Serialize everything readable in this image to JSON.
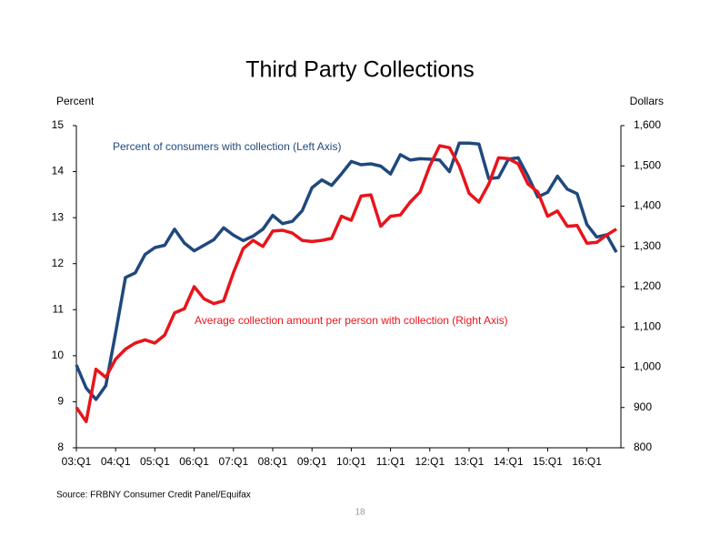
{
  "chart_data": {
    "type": "line",
    "title": "Third Party Collections",
    "y_label": "Percent",
    "y2_label": "Dollars",
    "source": "Source: FRBNY Consumer Credit Panel/Equifax",
    "page_number": "18",
    "categories": [
      "03:Q1",
      null,
      null,
      null,
      "04:Q1",
      null,
      null,
      null,
      "05:Q1",
      null,
      null,
      null,
      "06:Q1",
      null,
      null,
      null,
      "07:Q1",
      null,
      null,
      null,
      "08:Q1",
      null,
      null,
      null,
      "09:Q1",
      null,
      null,
      null,
      "10:Q1",
      null,
      null,
      null,
      "11:Q1",
      null,
      null,
      null,
      "12:Q1",
      null,
      null,
      null,
      "13:Q1",
      null,
      null,
      null,
      "14:Q1",
      null,
      null,
      null,
      "15:Q1",
      null,
      null,
      null,
      "16:Q1",
      null,
      null,
      null
    ],
    "series": [
      {
        "name": "Percent of consumers with collection (Left Axis)",
        "color": "#1f497d",
        "axis": "y",
        "values": [
          9.8,
          9.3,
          9.05,
          9.35,
          10.5,
          11.7,
          11.8,
          12.2,
          12.35,
          12.4,
          12.75,
          12.45,
          12.28,
          12.4,
          12.52,
          12.78,
          12.62,
          12.5,
          12.6,
          12.75,
          13.05,
          12.87,
          12.92,
          13.15,
          13.65,
          13.82,
          13.7,
          13.95,
          14.22,
          14.15,
          14.17,
          14.12,
          13.95,
          14.37,
          14.25,
          14.28,
          14.27,
          14.25,
          14.0,
          14.62,
          14.62,
          14.6,
          13.85,
          13.87,
          14.27,
          14.3,
          13.9,
          13.45,
          13.55,
          13.9,
          13.62,
          13.52,
          12.85,
          12.58,
          12.63,
          12.25
        ]
      },
      {
        "name": "Average collection amount per person with collection (Right Axis)",
        "color": "#e8141b",
        "axis": "y2",
        "values": [
          900,
          865,
          995,
          975,
          1020,
          1045,
          1060,
          1068,
          1060,
          1080,
          1135,
          1145,
          1200,
          1170,
          1158,
          1165,
          1235,
          1295,
          1315,
          1300,
          1338,
          1340,
          1333,
          1315,
          1312,
          1315,
          1320,
          1375,
          1365,
          1425,
          1428,
          1350,
          1375,
          1378,
          1410,
          1435,
          1500,
          1550,
          1545,
          1500,
          1432,
          1410,
          1455,
          1520,
          1518,
          1505,
          1455,
          1435,
          1375,
          1388,
          1350,
          1352,
          1308,
          1310,
          1328,
          1343
        ]
      }
    ],
    "ylim": [
      8,
      15
    ],
    "yticks": [
      8,
      9,
      10,
      11,
      12,
      13,
      14,
      15
    ],
    "y2lim": [
      800,
      1600
    ],
    "y2ticks": [
      800,
      900,
      {
        "value": 1000,
        "label": "1,000"
      },
      {
        "value": 1100,
        "label": "1,100"
      },
      {
        "value": 1200,
        "label": "1,200"
      },
      {
        "value": 1300,
        "label": "1,300"
      },
      {
        "value": 1400,
        "label": "1,400"
      },
      {
        "value": 1500,
        "label": "1,500"
      },
      {
        "value": 1600,
        "label": "1,600"
      }
    ],
    "grid": false
  }
}
